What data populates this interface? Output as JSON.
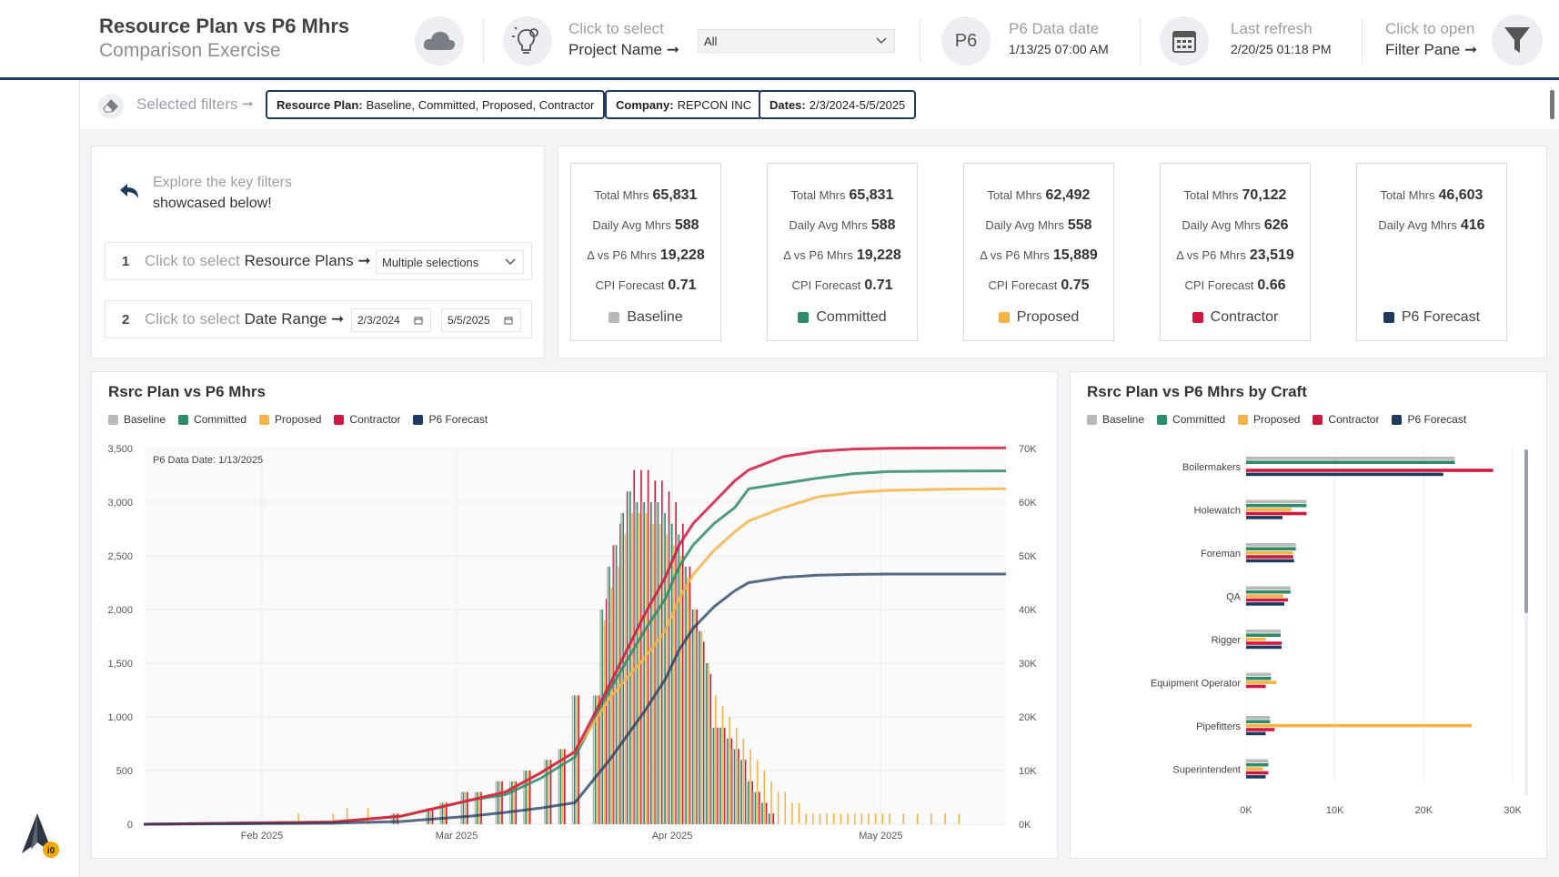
{
  "header": {
    "title": "Resource Plan vs P6 Mhrs",
    "subtitle": "Comparison Exercise",
    "project_hint": "Click to select",
    "project_label": "Project Name ➞",
    "project_value": "All",
    "p6_badge": "P6",
    "p6_date_label": "P6 Data date",
    "p6_date_value": "1/13/25 07:00 AM",
    "refresh_label": "Last refresh",
    "refresh_value": "2/20/25 01:18 PM",
    "filter_hint": "Click to open",
    "filter_label": "Filter Pane ➞"
  },
  "filters": {
    "label": "Selected filters",
    "arrow": "➞",
    "chips": [
      {
        "key": "Resource Plan:",
        "value": "Baseline, Committed, Proposed, Contractor"
      },
      {
        "key": "Company:",
        "value": "REPCON INC"
      },
      {
        "key": "Dates:",
        "value": "2/3/2024-5/5/2025"
      }
    ]
  },
  "explore": {
    "line1": "Explore the key filters",
    "line2": "showcased below!",
    "sel1_num": "1",
    "sel1_hint": "Click to select",
    "sel1_label": "Resource Plans ➞",
    "sel1_value": "Multiple selections",
    "sel2_num": "2",
    "sel2_hint": "Click to select",
    "sel2_label": "Date Range ➞",
    "sel2_from": "2/3/2024",
    "sel2_to": "5/5/2025"
  },
  "colors": {
    "baseline": "#b9b9b9",
    "committed": "#2e8b6a",
    "proposed": "#f6b447",
    "contractor": "#d0183f",
    "p6": "#1e3a5f"
  },
  "cards": [
    {
      "name": "Baseline",
      "color": "#b9b9b9",
      "total_label": "Total Mhrs",
      "total": "65,831",
      "avg_label": "Daily Avg Mhrs",
      "avg": "588",
      "delta_label": "Δ vs P6 Mhrs",
      "delta": "19,228",
      "cpi_label": "CPI Forecast",
      "cpi": "0.71"
    },
    {
      "name": "Committed",
      "color": "#2e8b6a",
      "total_label": "Total Mhrs",
      "total": "65,831",
      "avg_label": "Daily Avg Mhrs",
      "avg": "588",
      "delta_label": "Δ vs P6 Mhrs",
      "delta": "19,228",
      "cpi_label": "CPI Forecast",
      "cpi": "0.71"
    },
    {
      "name": "Proposed",
      "color": "#f6b447",
      "total_label": "Total Mhrs",
      "total": "62,492",
      "avg_label": "Daily Avg Mhrs",
      "avg": "558",
      "delta_label": "Δ vs P6 Mhrs",
      "delta": "15,889",
      "cpi_label": "CPI Forecast",
      "cpi": "0.75"
    },
    {
      "name": "Contractor",
      "color": "#d0183f",
      "total_label": "Total Mhrs",
      "total": "70,122",
      "avg_label": "Daily Avg Mhrs",
      "avg": "626",
      "delta_label": "Δ vs P6 Mhrs",
      "delta": "23,519",
      "cpi_label": "CPI Forecast",
      "cpi": "0.66"
    },
    {
      "name": "P6 Forecast",
      "color": "#1e3a5f",
      "total_label": "Total Mhrs",
      "total": "46,603",
      "avg_label": "Daily Avg Mhrs",
      "avg": "416",
      "delta_label": "",
      "delta": "",
      "cpi_label": "",
      "cpi": ""
    }
  ],
  "legend": [
    "Baseline",
    "Committed",
    "Proposed",
    "Contractor",
    "P6 Forecast"
  ],
  "chart_data": [
    {
      "type": "bar",
      "title": "Rsrc Plan vs P6 Mhrs",
      "annotation": "P6 Data Date: 1/13/2025",
      "x_ticks": [
        "Feb 2025",
        "Mar 2025",
        "Apr 2025",
        "May 2025"
      ],
      "y_left_ticks": [
        "0",
        "500",
        "1,000",
        "1,500",
        "2,000",
        "2,500",
        "3,000",
        "3,500"
      ],
      "y_left_range": [
        0,
        3500
      ],
      "y_right_ticks": [
        "0K",
        "10K",
        "20K",
        "30K",
        "40K",
        "50K",
        "60K",
        "70K"
      ],
      "y_right_range": [
        0,
        70000
      ],
      "x_range_days": [
        -17,
        107
      ],
      "daily_bars": {
        "description": "Clustered daily bars per plan (left axis, Mhrs/day)",
        "day_offsets_from_feb1": [
          5,
          10,
          12,
          15,
          19,
          24,
          26,
          29,
          31,
          34,
          36,
          38,
          41,
          43,
          45,
          48,
          49,
          50,
          51,
          52,
          53,
          54,
          55,
          56,
          57,
          58,
          59,
          60,
          61,
          62,
          63,
          64,
          65,
          66,
          67,
          68,
          69,
          70,
          71,
          72,
          73,
          74,
          75,
          76,
          77,
          78,
          79,
          80,
          81,
          82,
          83,
          84,
          85,
          86,
          87,
          88,
          89,
          90,
          92,
          94,
          96,
          98,
          100
        ],
        "series": [
          {
            "name": "Baseline",
            "values": [
              0,
              0,
              0,
              0,
              100,
              150,
              200,
              300,
              300,
              400,
              400,
              500,
              600,
              700,
              1200,
              1200,
              2000,
              2400,
              2600,
              2900,
              3100,
              3000,
              3000,
              3000,
              3000,
              2900,
              2800,
              2700,
              2400,
              2000,
              1800,
              1500,
              900,
              900,
              800,
              700,
              600,
              400,
              300,
              200,
              100,
              0,
              0,
              0,
              0,
              0,
              0,
              0,
              0,
              0,
              0,
              0,
              0,
              0,
              0,
              0,
              0,
              0,
              0,
              0,
              0,
              0,
              0
            ]
          },
          {
            "name": "Committed",
            "values": [
              0,
              0,
              0,
              0,
              100,
              150,
              200,
              300,
              300,
              400,
              400,
              500,
              600,
              700,
              1200,
              1200,
              2000,
              2400,
              2600,
              2900,
              3100,
              3000,
              3000,
              3000,
              3000,
              2900,
              2800,
              2700,
              2400,
              2000,
              1800,
              1500,
              900,
              900,
              800,
              700,
              600,
              400,
              300,
              200,
              100,
              0,
              0,
              0,
              0,
              0,
              0,
              0,
              0,
              0,
              0,
              0,
              0,
              0,
              0,
              0,
              0,
              0,
              0,
              0,
              0,
              0,
              0
            ]
          },
          {
            "name": "Proposed",
            "values": [
              100,
              100,
              150,
              150,
              100,
              150,
              200,
              300,
              300,
              400,
              400,
              500,
              600,
              700,
              1200,
              1200,
              1900,
              2200,
              2400,
              2700,
              2900,
              2900,
              2900,
              2800,
              2800,
              2700,
              2600,
              2500,
              2300,
              2000,
              1800,
              1500,
              1200,
              1100,
              1000,
              900,
              800,
              700,
              600,
              500,
              400,
              300,
              300,
              200,
              200,
              100,
              100,
              100,
              100,
              100,
              100,
              100,
              100,
              100,
              100,
              100,
              100,
              100,
              100,
              100,
              100,
              100,
              100
            ]
          },
          {
            "name": "Contractor",
            "values": [
              0,
              0,
              0,
              0,
              100,
              150,
              200,
              300,
              300,
              400,
              400,
              500,
              600,
              700,
              1200,
              1200,
              2100,
              2600,
              2800,
              3100,
              3300,
              3300,
              3300,
              3200,
              3200,
              3100,
              3000,
              2800,
              2400,
              2000,
              1700,
              1400,
              900,
              900,
              800,
              700,
              600,
              400,
              300,
              200,
              100,
              0,
              0,
              0,
              0,
              0,
              0,
              0,
              0,
              0,
              0,
              0,
              0,
              0,
              0,
              0,
              0,
              0,
              0,
              0,
              0,
              0,
              0
            ]
          }
        ]
      },
      "cumulative_lines": {
        "description": "Cumulative Mhrs (right axis)",
        "x_days": [
          -17,
          10,
          20,
          30,
          35,
          40,
          45,
          50,
          55,
          58,
          60,
          62,
          65,
          68,
          70,
          75,
          80,
          85,
          90,
          100,
          107
        ],
        "series": [
          {
            "name": "Committed",
            "values": [
              0,
              400,
              1500,
              4500,
              5500,
              8500,
              12500,
              25000,
              36000,
              42000,
              48000,
              52000,
              56000,
              59000,
              62500,
              63500,
              64500,
              65300,
              65700,
              65800,
              65831
            ]
          },
          {
            "name": "Proposed",
            "values": [
              0,
              400,
              1500,
              4500,
              6000,
              9500,
              13500,
              23500,
              31000,
              36000,
              42000,
              46500,
              51000,
              54500,
              56500,
              59000,
              61000,
              61800,
              62200,
              62450,
              62492
            ]
          },
          {
            "name": "Contractor",
            "values": [
              0,
              400,
              1500,
              4500,
              6000,
              9500,
              13500,
              26000,
              39000,
              46000,
              52000,
              56000,
              60000,
              64000,
              66000,
              68500,
              69500,
              69900,
              70050,
              70100,
              70122
            ]
          },
          {
            "name": "P6 Forecast",
            "values": [
              0,
              200,
              500,
              1500,
              2200,
              3000,
              4000,
              12000,
              21000,
              27000,
              32500,
              36500,
              40500,
              43500,
              45000,
              46000,
              46400,
              46550,
              46600,
              46603,
              46603
            ]
          }
        ]
      }
    },
    {
      "type": "bar",
      "orientation": "horizontal",
      "title": "Rsrc Plan vs P6 Mhrs by Craft",
      "categories": [
        "Boilermakers",
        "Holewatch",
        "Foreman",
        "QA",
        "Rigger",
        "Equipment Operator",
        "Pipefitters",
        "Superintendent"
      ],
      "x_ticks": [
        "0K",
        "10K",
        "20K",
        "30K"
      ],
      "x_range": [
        0,
        30000
      ],
      "series": [
        {
          "name": "Baseline",
          "values": [
            23500,
            6800,
            5600,
            5000,
            3900,
            2800,
            2700,
            2500
          ]
        },
        {
          "name": "Committed",
          "values": [
            23500,
            6800,
            5600,
            5000,
            3900,
            2800,
            2700,
            2500
          ]
        },
        {
          "name": "Proposed",
          "values": [
            0,
            5100,
            5300,
            4200,
            2200,
            3400,
            25400,
            1900
          ]
        },
        {
          "name": "Contractor",
          "values": [
            27800,
            6800,
            5300,
            4700,
            4000,
            2200,
            3200,
            2500
          ]
        },
        {
          "name": "P6 Forecast",
          "values": [
            22200,
            4100,
            5400,
            4300,
            4000,
            0,
            2200,
            2200
          ]
        }
      ]
    }
  ]
}
